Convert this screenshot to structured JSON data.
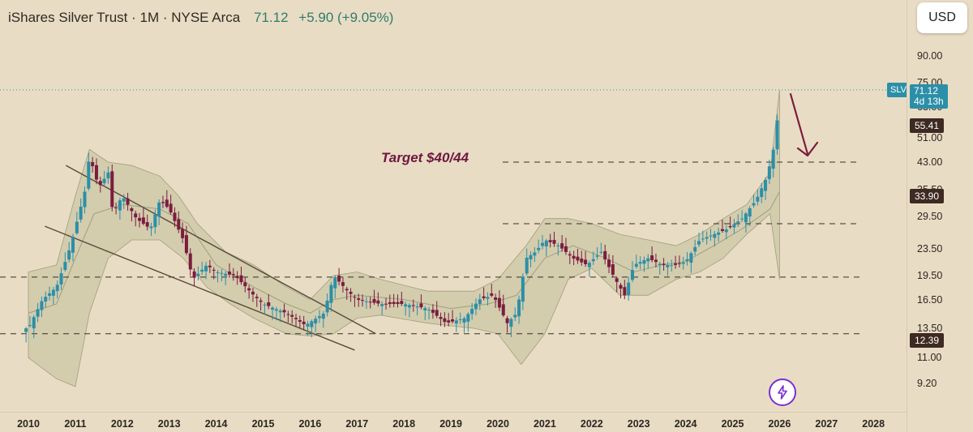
{
  "header": {
    "title": "iShares Silver Trust · 1M · NYSE Arca",
    "price": "71.12",
    "change": "+5.90 (+9.05%)"
  },
  "currency_label": "USD",
  "symbol": "SLV",
  "last_price_tag": {
    "price": "71.12",
    "countdown": "4d 13h"
  },
  "annotation": "Target $40/44",
  "icons": {
    "bolt": "lightning-bolt-icon",
    "arrow": "down-arrow-icon"
  },
  "colors": {
    "up": "#2c8fa8",
    "down": "#7b1c3e",
    "band_fill": "#b8b893",
    "band_line": "#9ea07e",
    "trendline": "#5a4a3a",
    "level_line": "#3a2e26",
    "target_text": "#6e1740",
    "price_tag_bg": "#3d2a22"
  },
  "chart_data": {
    "type": "candlestick",
    "title": "iShares Silver Trust · 1M · NYSE Arca",
    "symbol": "SLV",
    "x_ticks": [
      "2010",
      "2011",
      "2012",
      "2013",
      "2014",
      "2015",
      "2016",
      "2017",
      "2018",
      "2019",
      "2020",
      "2021",
      "2022",
      "2023",
      "2024",
      "2025",
      "2026",
      "2027",
      "2028"
    ],
    "y_ticks": [
      "90.00",
      "75.00",
      "63.00",
      "51.00",
      "43.00",
      "35.50",
      "29.50",
      "23.50",
      "19.50",
      "16.50",
      "13.50",
      "11.00",
      "9.20"
    ],
    "price_tags": [
      "55.41",
      "33.90",
      "12.39"
    ],
    "last_price": 71.12,
    "horizontal_levels": [
      43,
      28,
      19.3,
      13
    ],
    "annotation": "Target $40/44",
    "price_path": [
      [
        2010.0,
        13.5
      ],
      [
        2010.3,
        16.5
      ],
      [
        2010.6,
        18
      ],
      [
        2010.9,
        24
      ],
      [
        2011.2,
        35
      ],
      [
        2011.3,
        45
      ],
      [
        2011.5,
        36
      ],
      [
        2011.7,
        40
      ],
      [
        2011.8,
        30
      ],
      [
        2012.0,
        34
      ],
      [
        2012.3,
        29
      ],
      [
        2012.6,
        27
      ],
      [
        2012.8,
        33
      ],
      [
        2013.0,
        31
      ],
      [
        2013.3,
        25
      ],
      [
        2013.5,
        19
      ],
      [
        2013.8,
        21
      ],
      [
        2014.0,
        20
      ],
      [
        2014.4,
        19.5
      ],
      [
        2014.8,
        17
      ],
      [
        2015.0,
        16
      ],
      [
        2015.5,
        15
      ],
      [
        2015.9,
        13.8
      ],
      [
        2016.3,
        15
      ],
      [
        2016.5,
        19.5
      ],
      [
        2016.8,
        17.5
      ],
      [
        2017.0,
        16.5
      ],
      [
        2017.5,
        16
      ],
      [
        2018.0,
        16
      ],
      [
        2018.5,
        15.5
      ],
      [
        2018.9,
        14
      ],
      [
        2019.3,
        14.5
      ],
      [
        2019.6,
        16.5
      ],
      [
        2019.9,
        17
      ],
      [
        2020.2,
        14
      ],
      [
        2020.4,
        15
      ],
      [
        2020.6,
        22
      ],
      [
        2020.8,
        23
      ],
      [
        2021.0,
        25
      ],
      [
        2021.3,
        24
      ],
      [
        2021.6,
        22
      ],
      [
        2021.9,
        21
      ],
      [
        2022.2,
        23
      ],
      [
        2022.5,
        19
      ],
      [
        2022.7,
        17
      ],
      [
        2022.9,
        21
      ],
      [
        2023.2,
        22
      ],
      [
        2023.5,
        21
      ],
      [
        2023.8,
        21
      ],
      [
        2024.0,
        21.5
      ],
      [
        2024.3,
        25
      ],
      [
        2024.6,
        26
      ],
      [
        2024.9,
        27
      ],
      [
        2025.2,
        29
      ],
      [
        2025.5,
        33
      ],
      [
        2025.7,
        38
      ],
      [
        2025.85,
        45
      ],
      [
        2026.0,
        65
      ],
      [
        2026.05,
        71.12
      ]
    ],
    "bollinger_upper": [
      [
        2010.0,
        20
      ],
      [
        2010.6,
        21
      ],
      [
        2011.0,
        34
      ],
      [
        2011.3,
        47
      ],
      [
        2011.7,
        43
      ],
      [
        2012.2,
        42
      ],
      [
        2012.8,
        39
      ],
      [
        2013.2,
        34
      ],
      [
        2013.6,
        28
      ],
      [
        2014.2,
        23
      ],
      [
        2014.8,
        21
      ],
      [
        2015.5,
        18
      ],
      [
        2016.0,
        16.5
      ],
      [
        2016.5,
        19.5
      ],
      [
        2017.0,
        20
      ],
      [
        2017.5,
        19
      ],
      [
        2018.5,
        17.5
      ],
      [
        2019.5,
        17.5
      ],
      [
        2020.0,
        19
      ],
      [
        2020.6,
        24
      ],
      [
        2021.0,
        29
      ],
      [
        2021.5,
        29
      ],
      [
        2022.0,
        28
      ],
      [
        2022.6,
        26
      ],
      [
        2023.2,
        25
      ],
      [
        2023.8,
        24
      ],
      [
        2024.3,
        26
      ],
      [
        2024.8,
        29
      ],
      [
        2025.3,
        32
      ],
      [
        2025.8,
        40
      ],
      [
        2026.0,
        71
      ]
    ],
    "bollinger_lower": [
      [
        2010.0,
        11
      ],
      [
        2010.6,
        9.5
      ],
      [
        2011.0,
        9
      ],
      [
        2011.3,
        15
      ],
      [
        2011.7,
        22
      ],
      [
        2012.2,
        25
      ],
      [
        2012.8,
        25
      ],
      [
        2013.3,
        22
      ],
      [
        2013.8,
        18
      ],
      [
        2014.3,
        16
      ],
      [
        2014.8,
        14.5
      ],
      [
        2015.5,
        13
      ],
      [
        2016.0,
        12.8
      ],
      [
        2016.5,
        13
      ],
      [
        2017.0,
        14.5
      ],
      [
        2017.5,
        14.8
      ],
      [
        2018.5,
        14
      ],
      [
        2019.5,
        13.5
      ],
      [
        2020.0,
        13
      ],
      [
        2020.5,
        10.5
      ],
      [
        2021.0,
        13
      ],
      [
        2021.5,
        19
      ],
      [
        2022.0,
        20.5
      ],
      [
        2022.6,
        17
      ],
      [
        2023.2,
        17
      ],
      [
        2023.8,
        19
      ],
      [
        2024.3,
        20
      ],
      [
        2024.8,
        22
      ],
      [
        2025.3,
        26
      ],
      [
        2025.8,
        30
      ],
      [
        2026.0,
        19
      ]
    ],
    "bollinger_mid": [
      [
        2010.0,
        15
      ],
      [
        2010.6,
        16
      ],
      [
        2011.0,
        22
      ],
      [
        2011.4,
        30
      ],
      [
        2012.0,
        32
      ],
      [
        2012.8,
        31
      ],
      [
        2013.4,
        28
      ],
      [
        2014.0,
        21
      ],
      [
        2014.8,
        18
      ],
      [
        2015.5,
        16
      ],
      [
        2016.0,
        15
      ],
      [
        2016.5,
        16.5
      ],
      [
        2017.0,
        17
      ],
      [
        2018.0,
        16.5
      ],
      [
        2019.0,
        15.5
      ],
      [
        2019.8,
        16
      ],
      [
        2020.4,
        17
      ],
      [
        2021.0,
        22
      ],
      [
        2021.6,
        24
      ],
      [
        2022.3,
        22
      ],
      [
        2022.9,
        20
      ],
      [
        2023.5,
        21
      ],
      [
        2024.0,
        21.5
      ],
      [
        2024.6,
        24
      ],
      [
        2025.2,
        27
      ],
      [
        2025.8,
        31
      ],
      [
        2026.0,
        35
      ]
    ],
    "trendlines": [
      {
        "from": [
          2010.35,
          27.5
        ],
        "to": [
          2016.95,
          11.6
        ]
      },
      {
        "from": [
          2010.8,
          42
        ],
        "to": [
          2017.4,
          13
        ]
      }
    ]
  }
}
